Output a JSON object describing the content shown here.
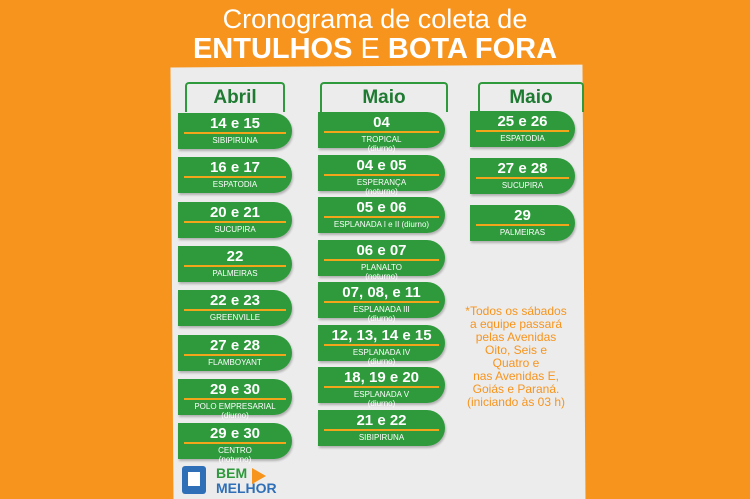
{
  "title": {
    "line1": "Cronograma de coleta de",
    "line2": [
      "ENTULHOS",
      "E",
      "BOTA FORA"
    ]
  },
  "columns": [
    {
      "header": "Abril",
      "entries": [
        {
          "date": "14 e 15",
          "place": "SIBIPIRUNA"
        },
        {
          "date": "16 e 17",
          "place": "ESPATODIA"
        },
        {
          "date": "20 e 21",
          "place": "SUCUPIRA"
        },
        {
          "date": "22",
          "place": "PALMEIRAS"
        },
        {
          "date": "22 e 23",
          "place": "GREENVILLE"
        },
        {
          "date": "27 e 28",
          "place": "FLAMBOYANT"
        },
        {
          "date": "29 e 30",
          "place": "POLO EMPRESARIAL",
          "shift": "(diurno)"
        },
        {
          "date": "29 e 30",
          "place": "CENTRO",
          "shift": "(noturno)"
        }
      ]
    },
    {
      "header": "Maio",
      "entries": [
        {
          "date": "04",
          "place": "TROPICAL",
          "shift": "(diurno)"
        },
        {
          "date": "04 e 05",
          "place": "ESPERANÇA",
          "shift": "(noturno)"
        },
        {
          "date": "05 e 06",
          "place": "ESPLANADA I e II (diurno)"
        },
        {
          "date": "06 e 07",
          "place": "PLANALTO",
          "shift": "(noturno)"
        },
        {
          "date": "07, 08, e 11",
          "place": "ESPLANADA III",
          "shift": "(diurno)"
        },
        {
          "date": "12, 13, 14 e 15",
          "place": "ESPLANADA IV",
          "shift": "(diurno)"
        },
        {
          "date": "18, 19 e 20",
          "place": "ESPLANADA V",
          "shift": "(diurno)"
        },
        {
          "date": "21 e 22",
          "place": "SIBIPIRUNA"
        }
      ]
    },
    {
      "header": "Maio",
      "entries": [
        {
          "date": "25 e 26",
          "place": "ESPATODIA"
        },
        {
          "date": "27 e 28",
          "place": "SUCUPIRA"
        },
        {
          "date": "29",
          "place": "PALMEIRAS"
        }
      ]
    }
  ],
  "note": [
    "*Todos os sábados",
    "a equipe passará",
    "pelas Avenidas",
    "Oito, Seis e",
    "Quatro e",
    "nas Avenidas E,",
    "Goiás e Paraná.",
    "(iniciando às 03 h)"
  ],
  "footer": {
    "logo_top": "BEM",
    "logo_bottom": "MELHOR"
  }
}
